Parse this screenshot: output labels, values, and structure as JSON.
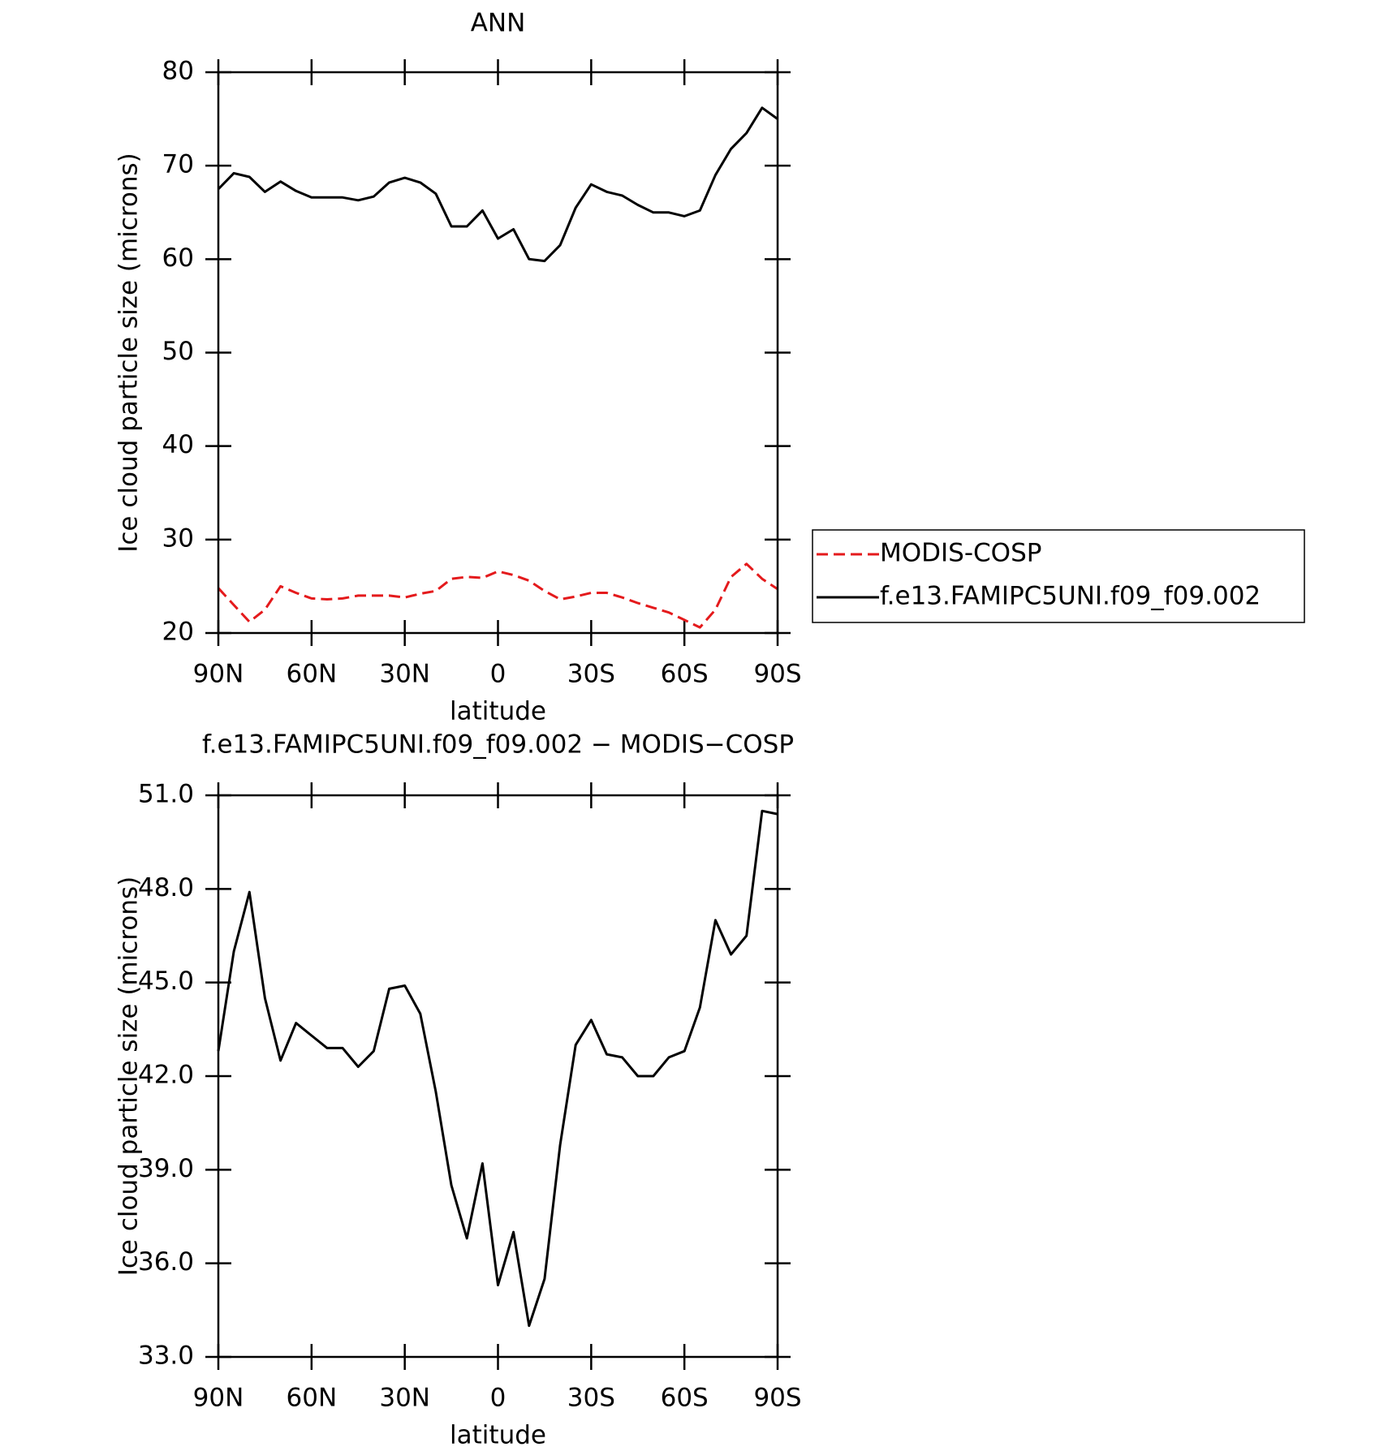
{
  "chart_data": [
    {
      "type": "line",
      "title": "ANN",
      "x_label": "latitude",
      "y_label": "Ice cloud particle size (microns)",
      "x": [
        90,
        85,
        80,
        75,
        70,
        65,
        60,
        55,
        50,
        45,
        40,
        35,
        30,
        25,
        20,
        15,
        10,
        5,
        0,
        -5,
        -10,
        -15,
        -20,
        -25,
        -30,
        -35,
        -40,
        -45,
        -50,
        -55,
        -60,
        -65,
        -70,
        -75,
        -80,
        -85,
        -90
      ],
      "xlim": [
        90,
        -90
      ],
      "xticks": [
        {
          "value": 90,
          "label": "90N"
        },
        {
          "value": 60,
          "label": "60N"
        },
        {
          "value": 30,
          "label": "30N"
        },
        0,
        {
          "value": -30,
          "label": "30S"
        },
        {
          "value": -60,
          "label": "60S"
        },
        {
          "value": -90,
          "label": "90S"
        }
      ],
      "ylim": [
        20,
        80
      ],
      "yticks": [
        20,
        30,
        40,
        50,
        60,
        70,
        80
      ],
      "legend": "right",
      "series": [
        {
          "name": "MODIS-COSP",
          "color": "#e41a1c",
          "dashed": true,
          "values": [
            24.8,
            23.0,
            21.2,
            22.5,
            25.0,
            24.3,
            23.7,
            23.6,
            23.7,
            24.0,
            24.0,
            24.0,
            23.8,
            24.2,
            24.5,
            25.8,
            26.0,
            25.9,
            26.6,
            26.2,
            25.6,
            24.5,
            23.6,
            23.9,
            24.3,
            24.3,
            23.8,
            23.2,
            22.7,
            22.2,
            21.4,
            20.6,
            22.5,
            26.0,
            27.4,
            25.8,
            24.7
          ]
        },
        {
          "name": "f.e13.FAMIPC5UNI.f09_f09.002",
          "color": "#000000",
          "dashed": false,
          "values": [
            67.5,
            69.2,
            68.8,
            67.2,
            68.3,
            67.3,
            66.6,
            66.6,
            66.6,
            66.3,
            66.7,
            68.2,
            68.7,
            68.2,
            67.0,
            63.5,
            63.5,
            65.2,
            62.2,
            63.2,
            60.0,
            59.8,
            61.5,
            65.5,
            68.0,
            67.2,
            66.8,
            65.8,
            65.0,
            65.0,
            64.6,
            65.2,
            69.0,
            71.8,
            73.5,
            76.2,
            75.0
          ]
        }
      ]
    },
    {
      "type": "line",
      "title": "f.e13.FAMIPC5UNI.f09_f09.002 − MODIS−COSP",
      "x_label": "latitude",
      "y_label": "Ice cloud particle size (microns)",
      "x": [
        90,
        85,
        80,
        75,
        70,
        65,
        60,
        55,
        50,
        45,
        40,
        35,
        30,
        25,
        20,
        15,
        10,
        5,
        0,
        -5,
        -10,
        -15,
        -20,
        -25,
        -30,
        -35,
        -40,
        -45,
        -50,
        -55,
        -60,
        -65,
        -70,
        -75,
        -80,
        -85,
        -90
      ],
      "xlim": [
        90,
        -90
      ],
      "xticks": [
        {
          "value": 90,
          "label": "90N"
        },
        {
          "value": 60,
          "label": "60N"
        },
        {
          "value": 30,
          "label": "30N"
        },
        0,
        {
          "value": -30,
          "label": "30S"
        },
        {
          "value": -60,
          "label": "60S"
        },
        {
          "value": -90,
          "label": "90S"
        }
      ],
      "ylim": [
        33,
        51
      ],
      "yticks": [
        {
          "value": 33,
          "label": "33.0"
        },
        {
          "value": 36,
          "label": "36.0"
        },
        {
          "value": 39,
          "label": "39.0"
        },
        {
          "value": 42,
          "label": "42.0"
        },
        {
          "value": 45,
          "label": "45.0"
        },
        {
          "value": 48,
          "label": "48.0"
        },
        {
          "value": 51,
          "label": "51.0"
        }
      ],
      "series": [
        {
          "color": "#000000",
          "dashed": false,
          "values": [
            42.8,
            46.0,
            47.9,
            44.5,
            42.5,
            43.7,
            43.3,
            42.9,
            42.9,
            42.3,
            42.8,
            44.8,
            44.9,
            44.0,
            41.5,
            38.5,
            36.8,
            39.2,
            35.3,
            37.0,
            34.0,
            35.5,
            39.8,
            43.0,
            43.8,
            42.7,
            42.6,
            42.0,
            42.0,
            42.6,
            42.8,
            44.2,
            47.0,
            45.9,
            46.5,
            50.5,
            50.4
          ]
        }
      ]
    }
  ]
}
